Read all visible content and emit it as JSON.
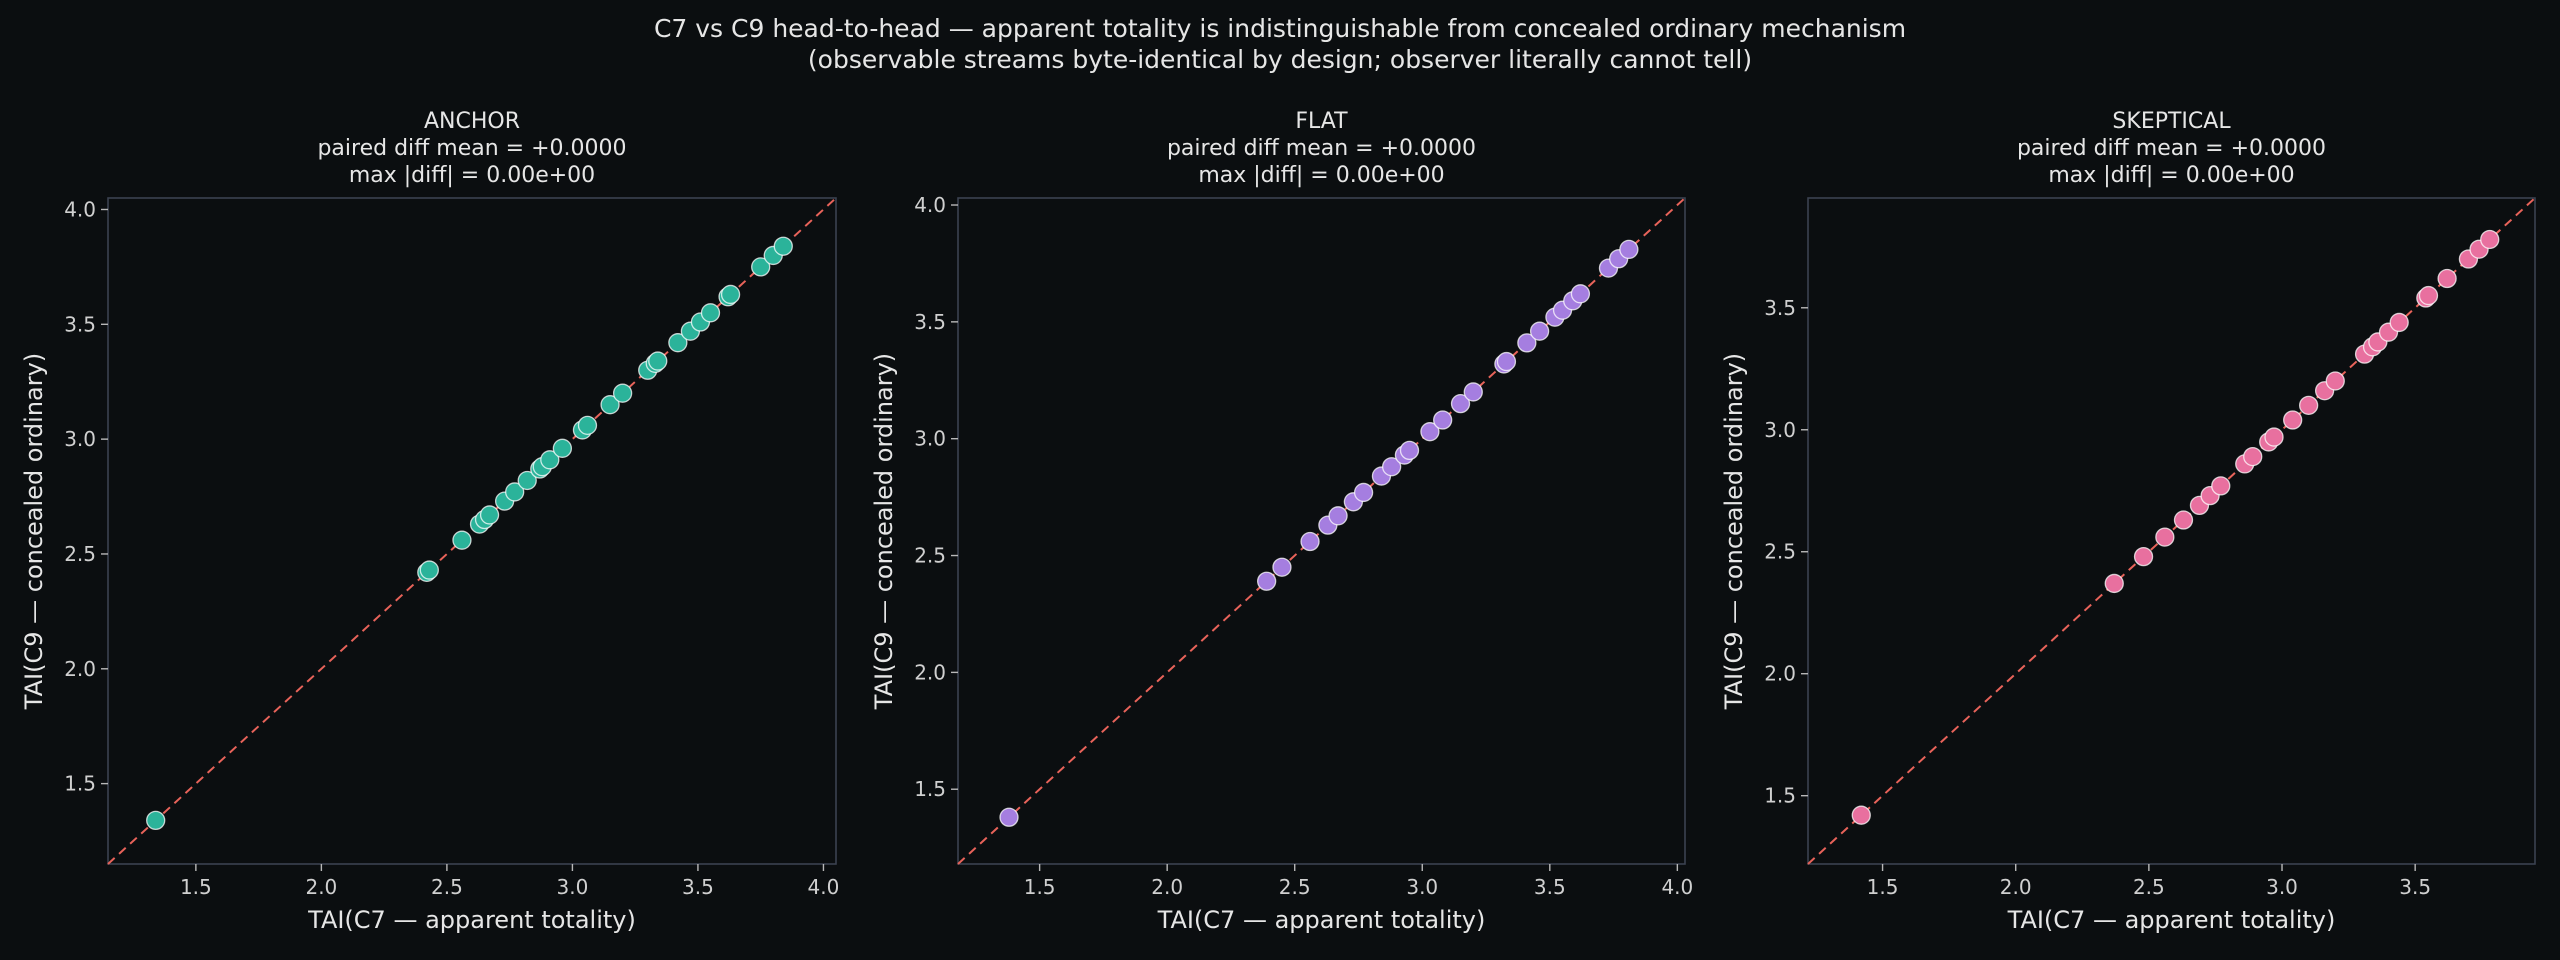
{
  "figure": {
    "title_line1": "C7 vs C9 head-to-head — apparent totality is indistinguishable from concealed ordinary mechanism",
    "title_line2": "(observable streams byte-identical by design; observer literally cannot tell)"
  },
  "chart_data": [
    {
      "type": "scatter",
      "title_lines": [
        "ANCHOR",
        "paired diff mean = +0.0000",
        "max |diff| = 0.00e+00"
      ],
      "xlabel": "TAI(C7 — apparent totality)",
      "ylabel": "TAI(C9 — concealed ordinary)",
      "xlim": [
        1.15,
        4.05
      ],
      "ylim": [
        1.15,
        4.05
      ],
      "xticks": [
        1.5,
        2.0,
        2.5,
        3.0,
        3.5,
        4.0
      ],
      "yticks": [
        1.5,
        2.0,
        2.5,
        3.0,
        3.5,
        4.0
      ],
      "xtick_labels": [
        "1.5",
        "2.0",
        "2.5",
        "3.0",
        "3.5",
        "4.0"
      ],
      "ytick_labels": [
        "1.5",
        "2.0",
        "2.5",
        "3.0",
        "3.5",
        "4.0"
      ],
      "color": "#2bb39a",
      "reference_line": "y = x",
      "x": [
        1.34,
        2.42,
        2.43,
        2.56,
        2.63,
        2.65,
        2.67,
        2.73,
        2.77,
        2.82,
        2.87,
        2.88,
        2.91,
        2.96,
        3.04,
        3.06,
        3.15,
        3.2,
        3.3,
        3.33,
        3.34,
        3.42,
        3.47,
        3.51,
        3.55,
        3.62,
        3.63,
        3.75,
        3.8,
        3.84
      ],
      "y": [
        1.34,
        2.42,
        2.43,
        2.56,
        2.63,
        2.65,
        2.67,
        2.73,
        2.77,
        2.82,
        2.87,
        2.88,
        2.91,
        2.96,
        3.04,
        3.06,
        3.15,
        3.2,
        3.3,
        3.33,
        3.34,
        3.42,
        3.47,
        3.51,
        3.55,
        3.62,
        3.63,
        3.75,
        3.8,
        3.84
      ]
    },
    {
      "type": "scatter",
      "title_lines": [
        "FLAT",
        "paired diff mean = +0.0000",
        "max |diff| = 0.00e+00"
      ],
      "xlabel": "TAI(C7 — apparent totality)",
      "ylabel": "TAI(C9 — concealed ordinary)",
      "xlim": [
        1.18,
        4.03
      ],
      "ylim": [
        1.18,
        4.03
      ],
      "xticks": [
        1.5,
        2.0,
        2.5,
        3.0,
        3.5,
        4.0
      ],
      "yticks": [
        1.5,
        2.0,
        2.5,
        3.0,
        3.5,
        4.0
      ],
      "xtick_labels": [
        "1.5",
        "2.0",
        "2.5",
        "3.0",
        "3.5",
        "4.0"
      ],
      "ytick_labels": [
        "1.5",
        "2.0",
        "2.5",
        "3.0",
        "3.5",
        "4.0"
      ],
      "color": "#a57ee0",
      "reference_line": "y = x",
      "x": [
        1.38,
        2.39,
        2.45,
        2.56,
        2.63,
        2.67,
        2.73,
        2.77,
        2.84,
        2.88,
        2.93,
        2.95,
        3.03,
        3.08,
        3.15,
        3.2,
        3.32,
        3.33,
        3.41,
        3.46,
        3.52,
        3.55,
        3.59,
        3.62,
        3.73,
        3.77,
        3.81
      ],
      "y": [
        1.38,
        2.39,
        2.45,
        2.56,
        2.63,
        2.67,
        2.73,
        2.77,
        2.84,
        2.88,
        2.93,
        2.95,
        3.03,
        3.08,
        3.15,
        3.2,
        3.32,
        3.33,
        3.41,
        3.46,
        3.52,
        3.55,
        3.59,
        3.62,
        3.73,
        3.77,
        3.81
      ]
    },
    {
      "type": "scatter",
      "title_lines": [
        "SKEPTICAL",
        "paired diff mean = +0.0000",
        "max |diff| = 0.00e+00"
      ],
      "xlabel": "TAI(C7 — apparent totality)",
      "ylabel": "TAI(C9 — concealed ordinary)",
      "xlim": [
        1.22,
        3.95
      ],
      "ylim": [
        1.22,
        3.95
      ],
      "xticks": [
        1.5,
        2.0,
        2.5,
        3.0,
        3.5
      ],
      "yticks": [
        1.5,
        2.0,
        2.5,
        3.0,
        3.5
      ],
      "xtick_labels": [
        "1.5",
        "2.0",
        "2.5",
        "3.0",
        "3.5"
      ],
      "ytick_labels": [
        "1.5",
        "2.0",
        "2.5",
        "3.0",
        "3.5"
      ],
      "color": "#e8709f",
      "reference_line": "y = x",
      "x": [
        1.42,
        2.37,
        2.48,
        2.56,
        2.63,
        2.69,
        2.73,
        2.77,
        2.86,
        2.89,
        2.95,
        2.97,
        3.04,
        3.1,
        3.16,
        3.2,
        3.31,
        3.34,
        3.36,
        3.4,
        3.44,
        3.54,
        3.55,
        3.62,
        3.7,
        3.74,
        3.78
      ],
      "y": [
        1.42,
        2.37,
        2.48,
        2.56,
        2.63,
        2.69,
        2.73,
        2.77,
        2.86,
        2.89,
        2.95,
        2.97,
        3.04,
        3.1,
        3.16,
        3.2,
        3.31,
        3.34,
        3.36,
        3.4,
        3.44,
        3.54,
        3.55,
        3.62,
        3.7,
        3.74,
        3.78
      ]
    }
  ]
}
